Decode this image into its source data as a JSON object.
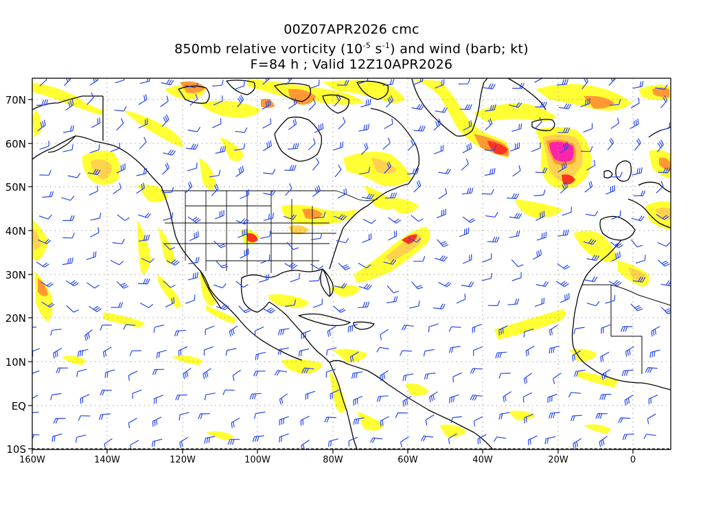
{
  "title": {
    "line1": "00Z07APR2026 cmc",
    "line2_pre": "850mb relative vorticity (10",
    "line2_exp1": "-5",
    "line2_mid": " s",
    "line2_exp2": "-1",
    "line2_post": ") and wind (barb; kt)",
    "line3": "F=84 h ; Valid 12Z10APR2026"
  },
  "axes": {
    "lat_labels": [
      "70N",
      "60N",
      "50N",
      "40N",
      "30N",
      "20N",
      "10N",
      "EQ",
      "10S"
    ],
    "lon_labels": [
      "160W",
      "140W",
      "120W",
      "100W",
      "80W",
      "60W",
      "40W",
      "20W",
      "0"
    ]
  },
  "colors": {
    "yellow": "#ffff33",
    "light_orange": "#ffd24d",
    "orange": "#ff9933",
    "red": "#ff3322",
    "magenta": "#ff22aa",
    "barb": "#2244ee",
    "coast": "#000000",
    "grid": "#999999"
  }
}
